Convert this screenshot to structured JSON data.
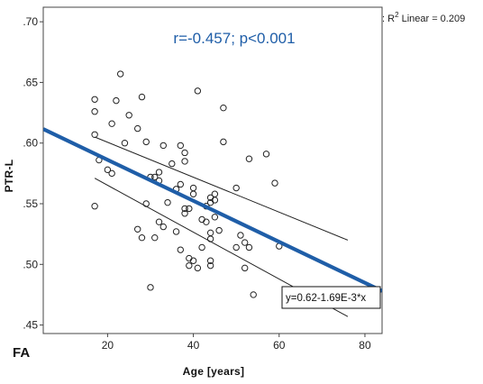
{
  "chart_data": {
    "type": "scatter",
    "panel_label": "FA",
    "xlabel": "Age [years]",
    "ylabel": "PTR-L",
    "xlim": [
      5,
      84
    ],
    "ylim": [
      0.443,
      0.712
    ],
    "xticks": [
      20,
      40,
      60,
      80
    ],
    "xtick_labels": [
      "20",
      "40",
      "60",
      "80"
    ],
    "yticks": [
      0.45,
      0.5,
      0.55,
      0.6,
      0.65,
      0.7
    ],
    "ytick_labels": [
      ".45",
      ".50",
      ".55",
      ".60",
      ".65",
      ".70"
    ],
    "grid": false,
    "stat_annotation": "r=-0.457; p<0.001",
    "r2_legend": {
      "prefix": ": R",
      "sup": "2",
      "suffix": " Linear = 0.209"
    },
    "equation_label": "y=0.62-1.69E-3*x",
    "fit_line": {
      "intercept": 0.62,
      "slope": -0.00169,
      "color": "#1f5ea8"
    },
    "ci_lower": {
      "x": [
        17,
        76
      ],
      "y": [
        0.571,
        0.457
      ]
    },
    "ci_upper": {
      "x": [
        17,
        76
      ],
      "y": [
        0.605,
        0.52
      ]
    },
    "points": {
      "x": [
        17,
        17,
        17,
        17,
        18,
        20,
        21,
        21,
        22,
        23,
        24,
        25,
        27,
        27,
        28,
        28,
        29,
        29,
        30,
        30,
        31,
        31,
        32,
        32,
        32,
        33,
        33,
        34,
        35,
        36,
        36,
        37,
        37,
        37,
        38,
        38,
        38,
        38,
        39,
        39,
        39,
        40,
        40,
        40,
        41,
        41,
        42,
        42,
        43,
        43,
        44,
        44,
        44,
        44,
        44,
        44,
        45,
        45,
        45,
        46,
        47,
        47,
        50,
        50,
        51,
        52,
        52,
        53,
        53,
        54,
        57,
        59,
        60
      ],
      "y": [
        0.636,
        0.626,
        0.607,
        0.548,
        0.586,
        0.578,
        0.575,
        0.616,
        0.635,
        0.657,
        0.6,
        0.623,
        0.612,
        0.529,
        0.638,
        0.522,
        0.601,
        0.55,
        0.572,
        0.481,
        0.572,
        0.522,
        0.576,
        0.569,
        0.535,
        0.598,
        0.531,
        0.551,
        0.583,
        0.562,
        0.527,
        0.598,
        0.566,
        0.512,
        0.592,
        0.585,
        0.546,
        0.542,
        0.546,
        0.505,
        0.499,
        0.563,
        0.558,
        0.503,
        0.643,
        0.497,
        0.537,
        0.514,
        0.535,
        0.548,
        0.555,
        0.551,
        0.526,
        0.521,
        0.503,
        0.499,
        0.558,
        0.553,
        0.539,
        0.528,
        0.629,
        0.601,
        0.563,
        0.514,
        0.524,
        0.518,
        0.497,
        0.587,
        0.514,
        0.475,
        0.591,
        0.567,
        0.515
      ]
    }
  }
}
